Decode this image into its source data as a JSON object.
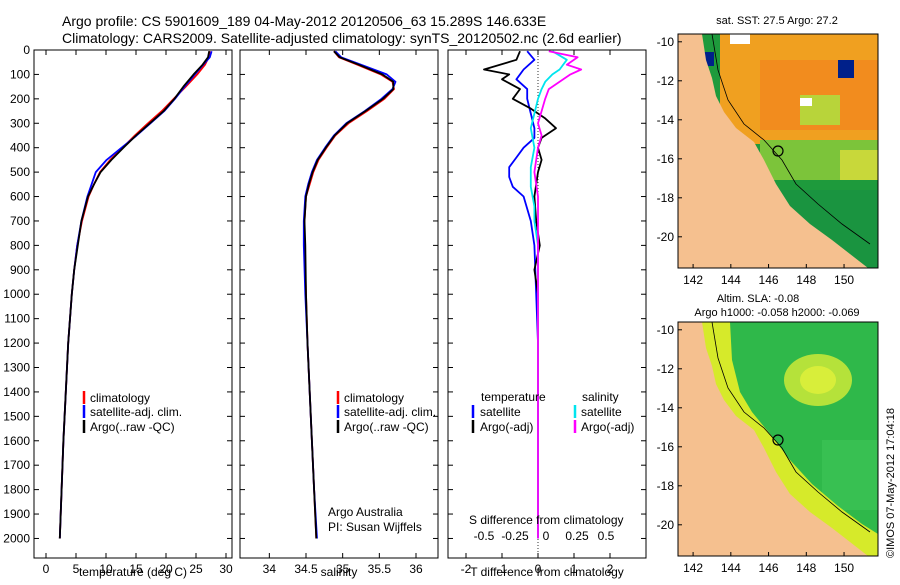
{
  "header": {
    "title_line1": "Argo profile: CS 5901609_189 04-May-2012 20120506_63 15.289S 146.633E",
    "title_line2": "Climatology: CARS2009. Satellite-adjusted climatology: synTS_20120502.nc (2.6d earlier)"
  },
  "colors": {
    "climatology": "#ff0000",
    "satellite": "#0000ff",
    "argo": "#000000",
    "s_satellite": "#00e5ee",
    "s_argo": "#ff00ff",
    "land": "#f5c08f"
  },
  "chart_data": [
    {
      "type": "line",
      "panel": "temperature",
      "xlabel": "temperature (deg C)",
      "ylabel": "",
      "xlim": [
        -2,
        31
      ],
      "ylim": [
        2080,
        0
      ],
      "xticks": [
        0,
        5,
        10,
        15,
        20,
        25,
        30
      ],
      "yticks": [
        0,
        100,
        200,
        300,
        400,
        500,
        600,
        700,
        800,
        900,
        1000,
        1100,
        1200,
        1300,
        1400,
        1500,
        1600,
        1700,
        1800,
        1900,
        2000
      ],
      "legend": [
        "climatology",
        "satellite-adj. clim.",
        "Argo(..raw -QC)"
      ],
      "series": [
        {
          "name": "climatology",
          "y": [
            5,
            30,
            60,
            100,
            150,
            200,
            250,
            300,
            350,
            400,
            450,
            500,
            550,
            600,
            700,
            800,
            900,
            1000,
            1200,
            1400,
            1600,
            1800,
            2000
          ],
          "x": [
            27.3,
            27.1,
            26.5,
            25.2,
            23.3,
            21.3,
            19.3,
            17.0,
            14.8,
            12.8,
            10.7,
            9.0,
            8.0,
            7.1,
            6.0,
            5.2,
            4.7,
            4.3,
            3.7,
            3.3,
            2.9,
            2.6,
            2.3
          ]
        },
        {
          "name": "satellite-adj. clim.",
          "y": [
            5,
            30,
            60,
            100,
            150,
            200,
            250,
            300,
            350,
            400,
            450,
            500,
            550,
            600,
            700,
            800,
            900,
            1000,
            1200,
            1400,
            1600,
            1800,
            2000
          ],
          "x": [
            27.6,
            27.3,
            26.2,
            24.8,
            23.1,
            21.5,
            19.7,
            17.4,
            15.1,
            12.6,
            10.1,
            8.3,
            7.6,
            6.9,
            5.9,
            5.2,
            4.7,
            4.3,
            3.7,
            3.3,
            2.9,
            2.6,
            2.3
          ]
        },
        {
          "name": "Argo(..raw -QC)",
          "y": [
            5,
            30,
            60,
            100,
            150,
            200,
            250,
            300,
            350,
            400,
            450,
            500,
            550,
            600,
            700,
            800,
            900,
            1000,
            1200,
            1400,
            1600,
            1800,
            2000
          ],
          "x": [
            27.2,
            27.0,
            26.1,
            24.6,
            22.9,
            21.4,
            19.6,
            17.3,
            15.0,
            12.9,
            10.9,
            9.1,
            8.0,
            7.0,
            5.9,
            5.3,
            4.7,
            4.3,
            3.7,
            3.3,
            2.9,
            2.6,
            2.3
          ]
        }
      ]
    },
    {
      "type": "line",
      "panel": "salinity",
      "xlabel": "salinity",
      "ylabel": "",
      "xlim": [
        33.6,
        36.3
      ],
      "ylim": [
        2080,
        0
      ],
      "xticks": [
        34,
        34.5,
        35,
        35.5,
        36
      ],
      "legend": [
        "climatology",
        "satellite-adj. clim.",
        "Argo(..raw -QC)"
      ],
      "annotation": [
        "Argo Australia",
        "PI: Susan Wijffels"
      ],
      "series": [
        {
          "name": "climatology",
          "y": [
            5,
            30,
            60,
            100,
            130,
            160,
            200,
            250,
            300,
            350,
            400,
            450,
            500,
            550,
            600,
            700,
            800,
            1000,
            1200,
            1400,
            1600,
            1800,
            2000
          ],
          "x": [
            34.88,
            34.95,
            35.2,
            35.52,
            35.68,
            35.7,
            35.57,
            35.33,
            35.08,
            34.9,
            34.78,
            34.67,
            34.6,
            34.55,
            34.5,
            34.48,
            34.48,
            34.5,
            34.52,
            34.55,
            34.58,
            34.61,
            34.64
          ]
        },
        {
          "name": "satellite-adj. clim.",
          "y": [
            5,
            30,
            60,
            100,
            130,
            160,
            200,
            250,
            300,
            350,
            400,
            450,
            500,
            550,
            600,
            700,
            800,
            1000,
            1200,
            1400,
            1600,
            1800,
            2000
          ],
          "x": [
            34.9,
            34.98,
            35.25,
            35.6,
            35.72,
            35.68,
            35.53,
            35.3,
            35.05,
            34.88,
            34.76,
            34.65,
            34.58,
            34.53,
            34.49,
            34.47,
            34.47,
            34.49,
            34.52,
            34.55,
            34.58,
            34.61,
            34.65
          ]
        },
        {
          "name": "Argo(..raw -QC)",
          "y": [
            5,
            30,
            60,
            100,
            130,
            160,
            200,
            250,
            300,
            350,
            400,
            450,
            500,
            550,
            600,
            700,
            800,
            1000,
            1200,
            1400,
            1600,
            1800,
            2000
          ],
          "x": [
            34.88,
            34.96,
            35.22,
            35.54,
            35.69,
            35.69,
            35.55,
            35.31,
            35.06,
            34.89,
            34.77,
            34.66,
            34.59,
            34.54,
            34.5,
            34.48,
            34.49,
            34.5,
            34.52,
            34.55,
            34.58,
            34.61,
            34.64
          ]
        }
      ]
    },
    {
      "type": "line",
      "panel": "differences",
      "xlabel": "T difference from climatology",
      "xlabel_top": "S difference from climatology",
      "xlim": [
        -2.5,
        3.0
      ],
      "ylim": [
        2080,
        0
      ],
      "xticks": [
        -2,
        -1,
        0,
        1,
        2
      ],
      "s_ticks": [
        "-0.5",
        "-0.25",
        "0",
        "0.25",
        "0.5"
      ],
      "legend_headers": [
        "temperature",
        "salinity"
      ],
      "legend": [
        "satellite",
        "Argo(-adj)",
        "satellite",
        "Argo(-adj)"
      ],
      "series": [
        {
          "name": "satellite",
          "y": [
            5,
            40,
            80,
            120,
            160,
            200,
            260,
            320,
            360,
            400,
            440,
            480,
            520,
            560,
            600,
            700,
            800,
            1000,
            1200,
            1500,
            1800,
            2000
          ],
          "x": [
            -0.3,
            -0.1,
            -0.4,
            -0.6,
            -0.3,
            -0.3,
            -0.2,
            -0.1,
            -0.1,
            -0.4,
            -0.6,
            -0.8,
            -0.8,
            -0.7,
            -0.4,
            -0.2,
            -0.1,
            -0.05,
            0.0,
            0.0,
            0.0,
            0.0
          ]
        },
        {
          "name": "Argo(-adj)",
          "y": [
            5,
            40,
            80,
            100,
            120,
            160,
            200,
            240,
            280,
            320,
            360,
            400,
            450,
            500,
            600,
            700,
            800,
            900,
            1000,
            1200,
            1500,
            1800,
            2000
          ],
          "x": [
            -0.5,
            -0.6,
            -1.5,
            -0.8,
            -1.0,
            -0.5,
            -0.7,
            -0.2,
            0.2,
            0.5,
            0.1,
            0.0,
            0.1,
            0.0,
            -0.1,
            -0.05,
            0.05,
            -0.1,
            0.0,
            0.0,
            0.0,
            0.0,
            0.0
          ]
        },
        {
          "name": "satellite",
          "y": [
            5,
            40,
            80,
            100,
            130,
            160,
            200,
            260,
            320,
            400,
            480,
            560,
            640,
            700,
            800,
            1000,
            1200,
            1500,
            1800,
            2000
          ],
          "x": [
            0.4,
            0.8,
            0.6,
            0.4,
            0.2,
            0.1,
            0.0,
            -0.1,
            -0.2,
            -0.1,
            -0.2,
            -0.2,
            -0.1,
            -0.1,
            0.0,
            0.0,
            0.0,
            0.0,
            0.0,
            0.0
          ]
        },
        {
          "name": "Argo(-adj)",
          "y": [
            5,
            30,
            60,
            80,
            100,
            130,
            160,
            200,
            250,
            300,
            350,
            400,
            500,
            600,
            700,
            800,
            1000,
            1200,
            1500,
            1800,
            2000
          ],
          "x": [
            0.3,
            1.1,
            0.8,
            1.2,
            0.9,
            0.6,
            0.3,
            0.2,
            0.1,
            0.0,
            0.1,
            0.0,
            -0.1,
            0.0,
            0.0,
            0.0,
            0.0,
            0.0,
            0.0,
            0.0,
            0.0
          ]
        }
      ]
    }
  ],
  "map_top": {
    "info": "sat. SST: 27.5 Argo: 27.2",
    "xticks": [
      "142",
      "144",
      "146",
      "148",
      "150"
    ],
    "yticks": [
      "-10",
      "-12",
      "-14",
      "-16",
      "-18",
      "-20"
    ]
  },
  "map_bottom": {
    "info_line1": "Altim. SLA: -0.08",
    "info_line2": "Argo h1000: -0.058 h2000: -0.069",
    "xticks": [
      "142",
      "144",
      "146",
      "148",
      "150"
    ],
    "yticks": [
      "-10",
      "-12",
      "-14",
      "-16",
      "-18",
      "-20"
    ]
  },
  "credit": "©IMOS 07-May-2012 17:04:18"
}
